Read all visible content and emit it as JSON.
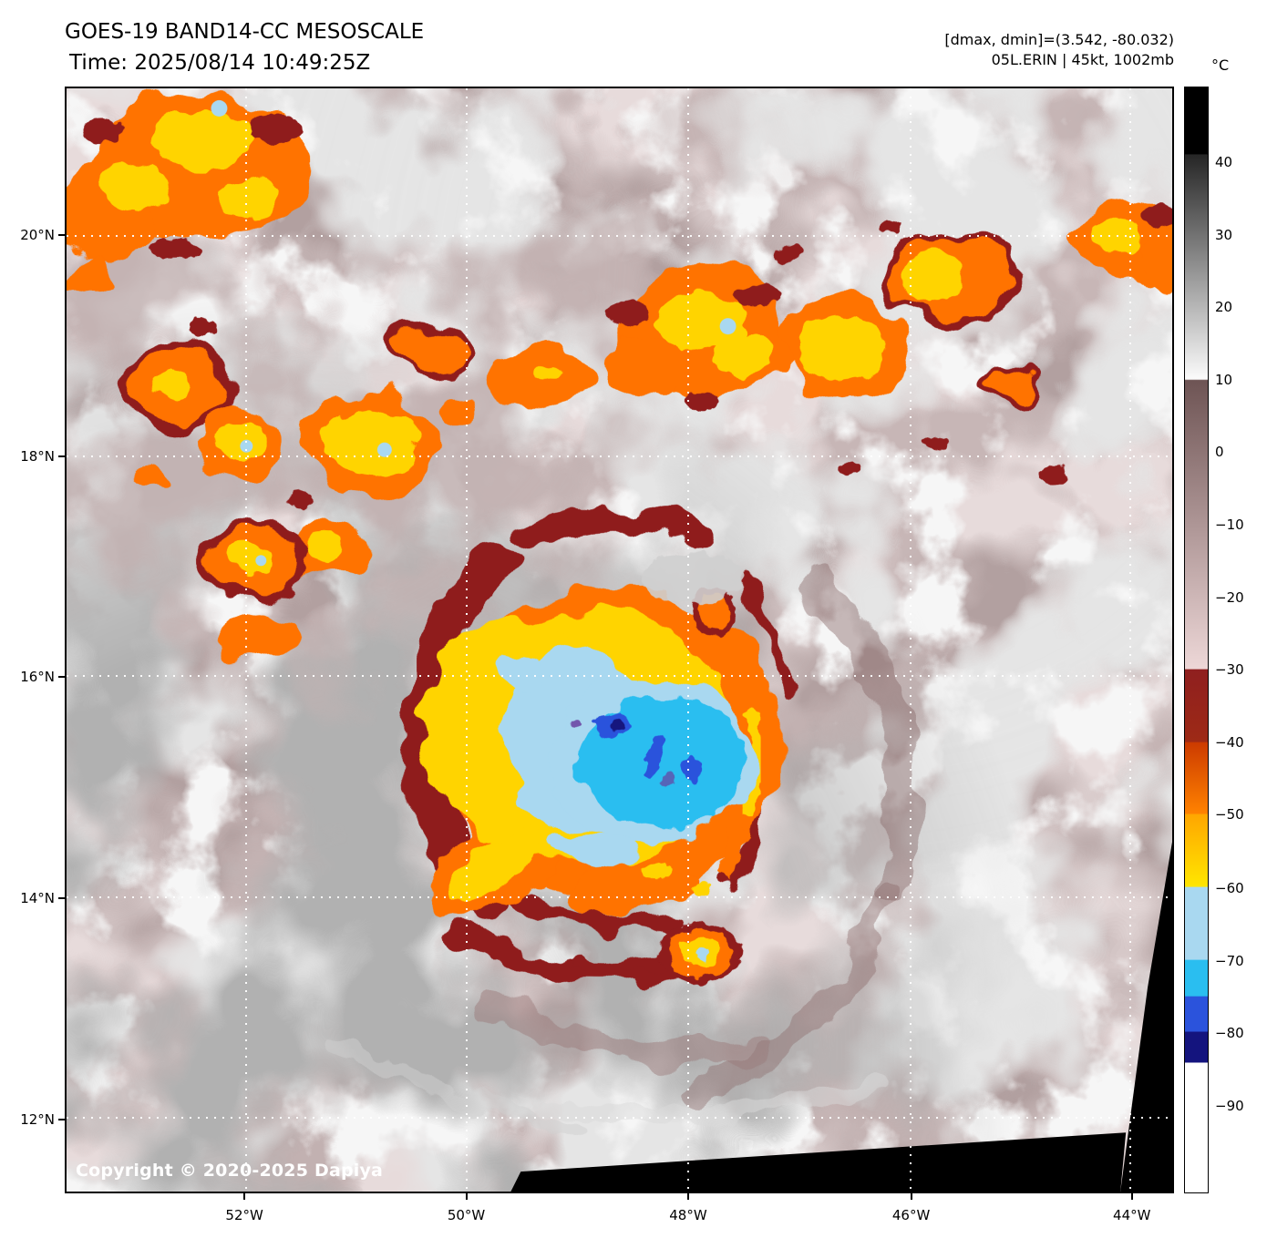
{
  "header": {
    "title": "GOES-19 BAND14-CC MESOSCALE",
    "timestamp": "Time: 2025/08/14 10:49:25Z",
    "dmax_dmin": "[dmax, dmin]=(3.542, -80.032)",
    "storm_info": "05L.ERIN | 45kt, 1002mb"
  },
  "colorbar": {
    "unit_label": "°C",
    "ticks": [
      {
        "label": "40",
        "pos": 6.8
      },
      {
        "label": "30",
        "pos": 13.4
      },
      {
        "label": "20",
        "pos": 19.9
      },
      {
        "label": "10",
        "pos": 26.5
      },
      {
        "label": "0",
        "pos": 33.0
      },
      {
        "label": "−10",
        "pos": 39.6
      },
      {
        "label": "−20",
        "pos": 46.2
      },
      {
        "label": "−30",
        "pos": 52.7
      },
      {
        "label": "−40",
        "pos": 59.3
      },
      {
        "label": "−50",
        "pos": 65.8
      },
      {
        "label": "−60",
        "pos": 72.4
      },
      {
        "label": "−70",
        "pos": 79.0
      },
      {
        "label": "−80",
        "pos": 85.5
      },
      {
        "label": "−90",
        "pos": 92.1
      }
    ],
    "stops": [
      {
        "p": 0,
        "c": "#000000"
      },
      {
        "p": 6.0,
        "c": "#000000"
      },
      {
        "p": 6.1,
        "c": "#262626"
      },
      {
        "p": 26.4,
        "c": "#fbfbfb"
      },
      {
        "p": 26.5,
        "c": "#6e5454"
      },
      {
        "p": 52.6,
        "c": "#edd7d7"
      },
      {
        "p": 52.7,
        "c": "#8f1f1f"
      },
      {
        "p": 59.2,
        "c": "#9e2a16"
      },
      {
        "p": 59.3,
        "c": "#cc3b00"
      },
      {
        "p": 65.7,
        "c": "#ff8200"
      },
      {
        "p": 65.8,
        "c": "#ffa600"
      },
      {
        "p": 72.3,
        "c": "#ffe600"
      },
      {
        "p": 72.4,
        "c": "#a9d8f0"
      },
      {
        "p": 78.9,
        "c": "#a9d8f0"
      },
      {
        "p": 79.0,
        "c": "#2abef0"
      },
      {
        "p": 82.2,
        "c": "#2abef0"
      },
      {
        "p": 82.3,
        "c": "#2b53dc"
      },
      {
        "p": 85.4,
        "c": "#2b53dc"
      },
      {
        "p": 85.5,
        "c": "#14147e"
      },
      {
        "p": 88.2,
        "c": "#14147e"
      },
      {
        "p": 88.3,
        "c": "#ffffff"
      },
      {
        "p": 100,
        "c": "#ffffff"
      }
    ]
  },
  "map": {
    "copyright": "Copyright © 2020-2025 Dapiya",
    "lat_ticks": [
      {
        "label": "20°N",
        "pos": 13.4
      },
      {
        "label": "18°N",
        "pos": 33.4
      },
      {
        "label": "16°N",
        "pos": 53.3
      },
      {
        "label": "14°N",
        "pos": 73.3
      },
      {
        "label": "12°N",
        "pos": 93.3
      }
    ],
    "lon_ticks": [
      {
        "label": "52°W",
        "pos": 16.2
      },
      {
        "label": "50°W",
        "pos": 36.2
      },
      {
        "label": "48°W",
        "pos": 56.2
      },
      {
        "label": "46°W",
        "pos": 76.3
      },
      {
        "label": "44°W",
        "pos": 96.2
      }
    ]
  }
}
